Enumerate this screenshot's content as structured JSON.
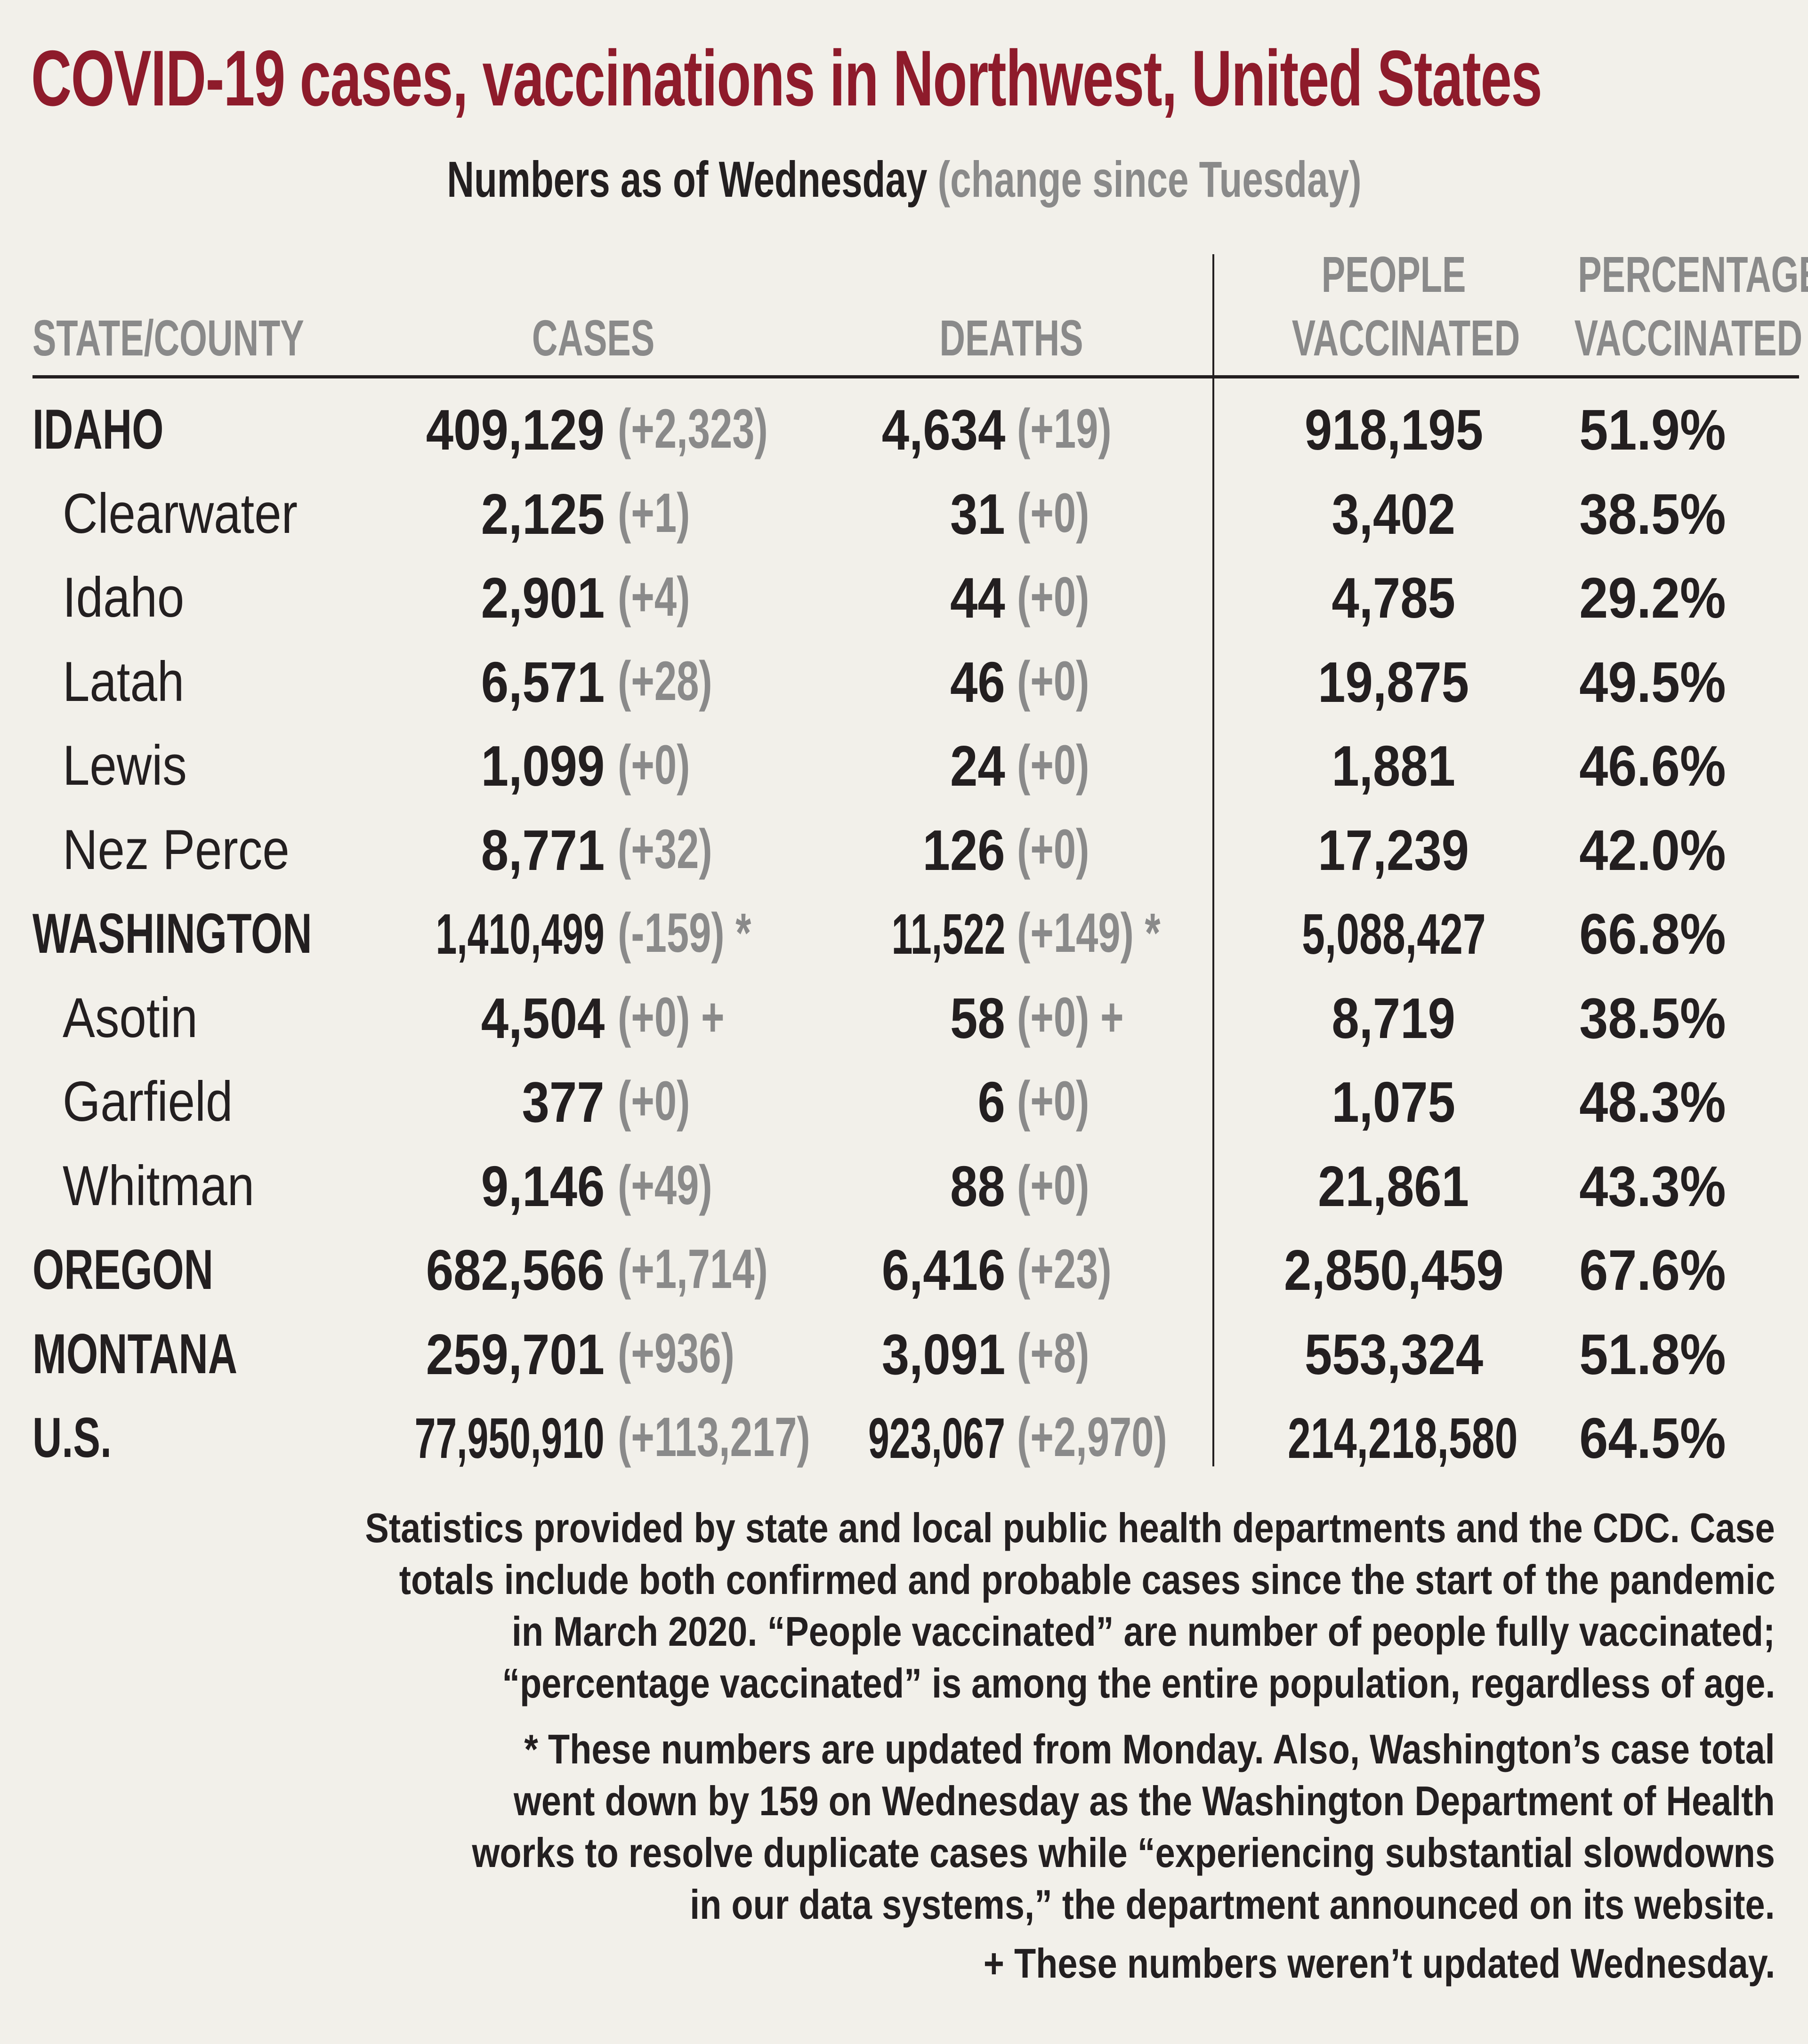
{
  "title": "COVID-19 cases, vaccinations in Northwest, United States",
  "subtitle": {
    "main": "Numbers as of Wednesday",
    "paren": "(change since Tuesday)"
  },
  "headers": {
    "state": "STATE/COUNTY",
    "cases": "CASES",
    "deaths": "DEATHS",
    "people_line1": "PEOPLE",
    "people_line2": "VACCINATED",
    "pct_line1": "PERCENTAGE",
    "pct_line2": "VACCINATED"
  },
  "colors": {
    "title": "#8e1b2b",
    "text": "#231f20",
    "change": "#8a8a8a",
    "background": "#f2f0ea"
  },
  "rows": [
    {
      "name": "IDAHO",
      "type": "state",
      "cases": "409,129",
      "cases_change": "(+2,323)",
      "deaths": "4,634",
      "deaths_change": "(+19)",
      "people": "918,195",
      "pct": "51.9%"
    },
    {
      "name": "Clearwater",
      "type": "county",
      "cases": "2,125",
      "cases_change": "(+1)",
      "deaths": "31",
      "deaths_change": "(+0)",
      "people": "3,402",
      "pct": "38.5%"
    },
    {
      "name": "Idaho",
      "type": "county",
      "cases": "2,901",
      "cases_change": "(+4)",
      "deaths": "44",
      "deaths_change": "(+0)",
      "people": "4,785",
      "pct": "29.2%"
    },
    {
      "name": "Latah",
      "type": "county",
      "cases": "6,571",
      "cases_change": "(+28)",
      "deaths": "46",
      "deaths_change": "(+0)",
      "people": "19,875",
      "pct": "49.5%"
    },
    {
      "name": "Lewis",
      "type": "county",
      "cases": "1,099",
      "cases_change": "(+0)",
      "deaths": "24",
      "deaths_change": "(+0)",
      "people": "1,881",
      "pct": "46.6%"
    },
    {
      "name": "Nez Perce",
      "type": "county",
      "cases": "8,771",
      "cases_change": "(+32)",
      "deaths": "126",
      "deaths_change": "(+0)",
      "people": "17,239",
      "pct": "42.0%"
    },
    {
      "name": "WASHINGTON",
      "type": "state",
      "cases": "1,410,499",
      "cases_change": "(-159) *",
      "deaths": "11,522",
      "deaths_change": "(+149) *",
      "people": "5,088,427",
      "pct": "66.8%"
    },
    {
      "name": "Asotin",
      "type": "county",
      "cases": "4,504",
      "cases_change": "(+0) +",
      "deaths": "58",
      "deaths_change": "(+0) +",
      "people": "8,719",
      "pct": "38.5%"
    },
    {
      "name": "Garfield",
      "type": "county",
      "cases": "377",
      "cases_change": "(+0)",
      "deaths": "6",
      "deaths_change": "(+0)",
      "people": "1,075",
      "pct": "48.3%"
    },
    {
      "name": "Whitman",
      "type": "county",
      "cases": "9,146",
      "cases_change": "(+49)",
      "deaths": "88",
      "deaths_change": "(+0)",
      "people": "21,861",
      "pct": "43.3%"
    },
    {
      "name": "OREGON",
      "type": "state",
      "cases": "682,566",
      "cases_change": "(+1,714)",
      "deaths": "6,416",
      "deaths_change": "(+23)",
      "people": "2,850,459",
      "pct": "67.6%"
    },
    {
      "name": "MONTANA",
      "type": "state",
      "cases": "259,701",
      "cases_change": "(+936)",
      "deaths": "3,091",
      "deaths_change": "(+8)",
      "people": "553,324",
      "pct": "51.8%"
    },
    {
      "name": "U.S.",
      "type": "state",
      "cases": "77,950,910",
      "cases_change": "(+113,217)",
      "deaths": "923,067",
      "deaths_change": "(+2,970)",
      "people": "214,218,580",
      "pct": "64.5%"
    }
  ],
  "notes": [
    "Statistics provided by state and local public health departments and the CDC. Case",
    "totals include both confirmed and probable cases since the start of the pandemic",
    "in March 2020. “People vaccinated” are number of people fully vaccinated;",
    "“percentage vaccinated” is among the entire population, regardless of age.",
    "* These numbers are updated from Monday. Also, Washington’s case total",
    "went down by 159 on Wednesday as the Washington Department of Health",
    "works to resolve duplicate cases while “experiencing substantial slowdowns",
    "in our data systems,” the department announced on its website.",
    "+ These numbers weren’t updated Wednesday."
  ]
}
